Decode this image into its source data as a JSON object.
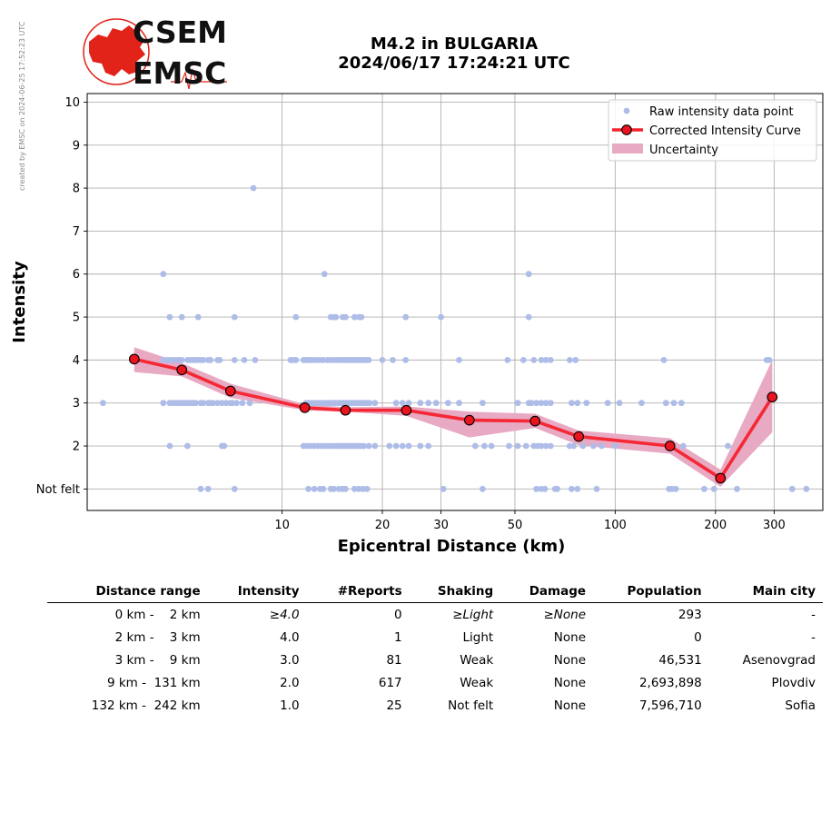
{
  "side_note": "created by EMSC on 2024-06-25 17:52:23 UTC",
  "logo": {
    "line1": "CSEM",
    "line2": "EMSC",
    "color": "#e2231a"
  },
  "title": {
    "line1": "M4.2 in BULGARIA",
    "line2": "2024/06/17 17:24:21 UTC"
  },
  "colors": {
    "raw": "#aebce8",
    "curve": "#f5222d",
    "band": "#e8a9c3",
    "marker_face": "#e8141e"
  },
  "chart_data": {
    "type": "scatter",
    "xscale": "log",
    "xlabel": "Epicentral Distance (km)",
    "ylabel": "Intensity",
    "xlim": [
      2.6,
      420
    ],
    "ylim": [
      0.5,
      10.2
    ],
    "xticks": [
      10,
      20,
      30,
      50,
      100,
      200,
      300
    ],
    "xtick_labels": [
      "10",
      "20",
      "30",
      "50",
      "100",
      "200",
      "300"
    ],
    "yticks": [
      1,
      2,
      3,
      4,
      5,
      6,
      7,
      8,
      9,
      10
    ],
    "ytick_labels": [
      "Not felt",
      "2",
      "3",
      "4",
      "5",
      "6",
      "7",
      "8",
      "9",
      "10"
    ],
    "grid": true,
    "legend_position": "top-right",
    "legend": [
      "Raw intensity data point",
      "Corrected Intensity Curve",
      "Uncertainty"
    ],
    "raw_points": {
      "10": [
        [
          8.2,
          8
        ]
      ],
      "6": [
        [
          4.4,
          6
        ],
        [
          13.4,
          6
        ],
        [
          55,
          6
        ]
      ],
      "5": [
        [
          4.6,
          5
        ],
        [
          5.0,
          5
        ],
        [
          5.6,
          5
        ],
        [
          7.2,
          5
        ],
        [
          11.0,
          5
        ],
        [
          14.0,
          5
        ],
        [
          14.3,
          5
        ],
        [
          14.5,
          5
        ],
        [
          15.2,
          5
        ],
        [
          15.5,
          5
        ],
        [
          16.5,
          5
        ],
        [
          17.0,
          5
        ],
        [
          17.3,
          5
        ],
        [
          23.5,
          5
        ],
        [
          30,
          5
        ],
        [
          55,
          5
        ]
      ],
      "4": [
        [
          4.4,
          4
        ],
        [
          4.5,
          4
        ],
        [
          4.6,
          4
        ],
        [
          4.7,
          4
        ],
        [
          4.8,
          4
        ],
        [
          4.9,
          4
        ],
        [
          5.0,
          4
        ],
        [
          5.2,
          4
        ],
        [
          5.3,
          4
        ],
        [
          5.4,
          4
        ],
        [
          5.5,
          4
        ],
        [
          5.6,
          4
        ],
        [
          5.7,
          4
        ],
        [
          5.8,
          4
        ],
        [
          6.0,
          4
        ],
        [
          6.1,
          4
        ],
        [
          6.4,
          4
        ],
        [
          6.5,
          4
        ],
        [
          7.2,
          4
        ],
        [
          7.7,
          4
        ],
        [
          8.3,
          4
        ],
        [
          10.6,
          4
        ],
        [
          10.8,
          4
        ],
        [
          11.0,
          4
        ],
        [
          11.6,
          4
        ],
        [
          11.8,
          4
        ],
        [
          12.0,
          4
        ],
        [
          12.2,
          4
        ],
        [
          12.4,
          4
        ],
        [
          12.7,
          4
        ],
        [
          13.0,
          4
        ],
        [
          13.3,
          4
        ],
        [
          13.7,
          4
        ],
        [
          14.0,
          4
        ],
        [
          14.3,
          4
        ],
        [
          14.6,
          4
        ],
        [
          14.9,
          4
        ],
        [
          15.2,
          4
        ],
        [
          15.5,
          4
        ],
        [
          15.8,
          4
        ],
        [
          16.1,
          4
        ],
        [
          16.4,
          4
        ],
        [
          16.7,
          4
        ],
        [
          17.0,
          4
        ],
        [
          17.3,
          4
        ],
        [
          17.6,
          4
        ],
        [
          17.9,
          4
        ],
        [
          18.2,
          4
        ],
        [
          20,
          4
        ],
        [
          21.5,
          4
        ],
        [
          23.5,
          4
        ],
        [
          34,
          4
        ],
        [
          47.5,
          4
        ],
        [
          53,
          4
        ],
        [
          57,
          4
        ],
        [
          60,
          4
        ],
        [
          62,
          4
        ],
        [
          64,
          4
        ],
        [
          73,
          4
        ],
        [
          76,
          4
        ],
        [
          140,
          4
        ],
        [
          285,
          4
        ],
        [
          290,
          4
        ]
      ],
      "3": [
        [
          2.9,
          3
        ],
        [
          4.4,
          3
        ],
        [
          4.6,
          3
        ],
        [
          4.7,
          3
        ],
        [
          4.8,
          3
        ],
        [
          4.9,
          3
        ],
        [
          5.0,
          3
        ],
        [
          5.1,
          3
        ],
        [
          5.2,
          3
        ],
        [
          5.3,
          3
        ],
        [
          5.4,
          3
        ],
        [
          5.5,
          3
        ],
        [
          5.7,
          3
        ],
        [
          5.8,
          3
        ],
        [
          6.0,
          3
        ],
        [
          6.1,
          3
        ],
        [
          6.2,
          3
        ],
        [
          6.4,
          3
        ],
        [
          6.6,
          3
        ],
        [
          6.8,
          3
        ],
        [
          7.0,
          3
        ],
        [
          7.1,
          3
        ],
        [
          7.3,
          3
        ],
        [
          7.6,
          3
        ],
        [
          8.0,
          3
        ],
        [
          11.8,
          3
        ],
        [
          12.0,
          3
        ],
        [
          12.3,
          3
        ],
        [
          12.6,
          3
        ],
        [
          12.9,
          3
        ],
        [
          13.2,
          3
        ],
        [
          13.5,
          3
        ],
        [
          13.8,
          3
        ],
        [
          14.1,
          3
        ],
        [
          14.4,
          3
        ],
        [
          14.7,
          3
        ],
        [
          15.0,
          3
        ],
        [
          15.3,
          3
        ],
        [
          15.6,
          3
        ],
        [
          15.9,
          3
        ],
        [
          16.2,
          3
        ],
        [
          16.5,
          3
        ],
        [
          16.8,
          3
        ],
        [
          17.1,
          3
        ],
        [
          17.4,
          3
        ],
        [
          17.7,
          3
        ],
        [
          18.0,
          3
        ],
        [
          18.3,
          3
        ],
        [
          19,
          3
        ],
        [
          22,
          3
        ],
        [
          23,
          3
        ],
        [
          24,
          3
        ],
        [
          26,
          3
        ],
        [
          27.5,
          3
        ],
        [
          29,
          3
        ],
        [
          31.5,
          3
        ],
        [
          34,
          3
        ],
        [
          40,
          3
        ],
        [
          51,
          3
        ],
        [
          55,
          3
        ],
        [
          56,
          3
        ],
        [
          58,
          3
        ],
        [
          60,
          3
        ],
        [
          62,
          3
        ],
        [
          64,
          3
        ],
        [
          74,
          3
        ],
        [
          77,
          3
        ],
        [
          82,
          3
        ],
        [
          95,
          3
        ],
        [
          103,
          3
        ],
        [
          120,
          3
        ],
        [
          142,
          3
        ],
        [
          150,
          3
        ],
        [
          158,
          3
        ]
      ],
      "2": [
        [
          4.6,
          2
        ],
        [
          5.2,
          2
        ],
        [
          6.6,
          2
        ],
        [
          6.7,
          2
        ],
        [
          11.6,
          2
        ],
        [
          11.9,
          2
        ],
        [
          12.2,
          2
        ],
        [
          12.5,
          2
        ],
        [
          12.8,
          2
        ],
        [
          13.1,
          2
        ],
        [
          13.4,
          2
        ],
        [
          13.7,
          2
        ],
        [
          14.0,
          2
        ],
        [
          14.3,
          2
        ],
        [
          14.6,
          2
        ],
        [
          14.9,
          2
        ],
        [
          15.2,
          2
        ],
        [
          15.5,
          2
        ],
        [
          15.8,
          2
        ],
        [
          16.1,
          2
        ],
        [
          16.4,
          2
        ],
        [
          16.7,
          2
        ],
        [
          17.0,
          2
        ],
        [
          17.3,
          2
        ],
        [
          17.6,
          2
        ],
        [
          18.2,
          2
        ],
        [
          19,
          2
        ],
        [
          21,
          2
        ],
        [
          22,
          2
        ],
        [
          23,
          2
        ],
        [
          24,
          2
        ],
        [
          26,
          2
        ],
        [
          27.5,
          2
        ],
        [
          38,
          2
        ],
        [
          40.5,
          2
        ],
        [
          42.5,
          2
        ],
        [
          48,
          2
        ],
        [
          51,
          2
        ],
        [
          54,
          2
        ],
        [
          57,
          2
        ],
        [
          58.5,
          2
        ],
        [
          60,
          2
        ],
        [
          62,
          2
        ],
        [
          64,
          2
        ],
        [
          73,
          2
        ],
        [
          75,
          2
        ],
        [
          80,
          2
        ],
        [
          86,
          2
        ],
        [
          91,
          2
        ],
        [
          100,
          2
        ],
        [
          160,
          2
        ],
        [
          218,
          2
        ]
      ],
      "1": [
        [
          5.7,
          1
        ],
        [
          6.0,
          1
        ],
        [
          7.2,
          1
        ],
        [
          12.0,
          1
        ],
        [
          12.5,
          1
        ],
        [
          13.0,
          1
        ],
        [
          13.3,
          1
        ],
        [
          14.0,
          1
        ],
        [
          14.3,
          1
        ],
        [
          14.8,
          1
        ],
        [
          15.2,
          1
        ],
        [
          15.5,
          1
        ],
        [
          16.5,
          1
        ],
        [
          17.0,
          1
        ],
        [
          17.5,
          1
        ],
        [
          18.0,
          1
        ],
        [
          30.5,
          1
        ],
        [
          40,
          1
        ],
        [
          58,
          1
        ],
        [
          60,
          1
        ],
        [
          61.5,
          1
        ],
        [
          66,
          1
        ],
        [
          67,
          1
        ],
        [
          74,
          1
        ],
        [
          77,
          1
        ],
        [
          88,
          1
        ],
        [
          145,
          1
        ],
        [
          148,
          1
        ],
        [
          152,
          1
        ],
        [
          185,
          1
        ],
        [
          198,
          1
        ],
        [
          232,
          1
        ],
        [
          340,
          1
        ],
        [
          375,
          1
        ]
      ]
    },
    "curve": {
      "x": [
        3.6,
        5.0,
        7.0,
        11.7,
        15.5,
        23.6,
        36.5,
        57.5,
        77.7,
        146,
        207,
        296
      ],
      "y": [
        4.02,
        3.77,
        3.28,
        2.89,
        2.83,
        2.83,
        2.6,
        2.58,
        2.22,
        2.0,
        1.25,
        3.14
      ],
      "lower": [
        3.72,
        3.62,
        3.12,
        2.83,
        2.8,
        2.7,
        2.2,
        2.42,
        2.02,
        1.82,
        1.05,
        2.32
      ],
      "upper": [
        4.3,
        3.93,
        3.45,
        2.97,
        2.9,
        2.92,
        2.8,
        2.75,
        2.36,
        2.18,
        1.45,
        4.0
      ]
    }
  },
  "table": {
    "headers": [
      "Distance range",
      "Intensity",
      "#Reports",
      "Shaking",
      "Damage",
      "Population",
      "Main city"
    ],
    "rows": [
      {
        "range": "0 km -    2 km",
        "intensity": "≥4.0",
        "reports": "0",
        "shaking": "≥Light",
        "damage": "≥None",
        "population": "293",
        "city": "-"
      },
      {
        "range": "2 km -    3 km",
        "intensity": "4.0",
        "reports": "1",
        "shaking": "Light",
        "damage": "None",
        "population": "0",
        "city": "-"
      },
      {
        "range": "3 km -    9 km",
        "intensity": "3.0",
        "reports": "81",
        "shaking": "Weak",
        "damage": "None",
        "population": "46,531",
        "city": "Asenovgrad"
      },
      {
        "range": "9 km -  131 km",
        "intensity": "2.0",
        "reports": "617",
        "shaking": "Weak",
        "damage": "None",
        "population": "2,693,898",
        "city": "Plovdiv"
      },
      {
        "range": "132 km -  242 km",
        "intensity": "1.0",
        "reports": "25",
        "shaking": "Not felt",
        "damage": "None",
        "population": "7,596,710",
        "city": "Sofia"
      }
    ]
  }
}
